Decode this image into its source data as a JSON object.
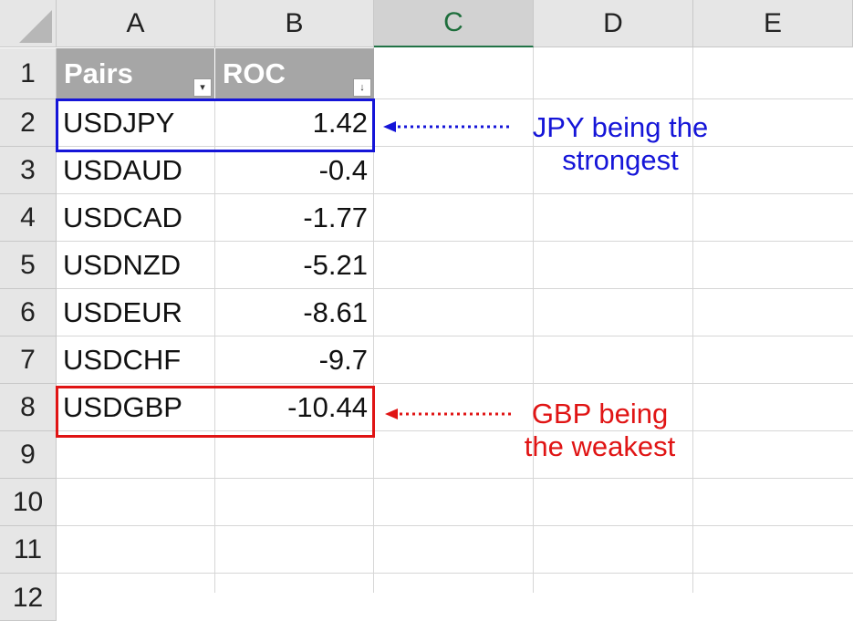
{
  "columns": [
    "A",
    "B",
    "C",
    "D",
    "E"
  ],
  "selected_column": "C",
  "rows": [
    "1",
    "2",
    "3",
    "4",
    "5",
    "6",
    "7",
    "8",
    "9",
    "10",
    "11",
    "12"
  ],
  "table": {
    "headers": [
      "Pairs",
      "ROC"
    ],
    "filter_icons": [
      "▾",
      "↓"
    ],
    "data": [
      {
        "pair": "USDJPY",
        "roc": "1.42"
      },
      {
        "pair": "USDAUD",
        "roc": "-0.4"
      },
      {
        "pair": "USDCAD",
        "roc": "-1.77"
      },
      {
        "pair": "USDNZD",
        "roc": "-5.21"
      },
      {
        "pair": "USDEUR",
        "roc": "-8.61"
      },
      {
        "pair": "USDCHF",
        "roc": "-9.7"
      },
      {
        "pair": "USDGBP",
        "roc": "-10.44"
      }
    ]
  },
  "annotations": {
    "strongest": {
      "line1": "JPY being the",
      "line2": "strongest",
      "color": "#1515d8"
    },
    "weakest": {
      "line1": "GBP being",
      "line2": "the weakest",
      "color": "#e01414"
    }
  }
}
